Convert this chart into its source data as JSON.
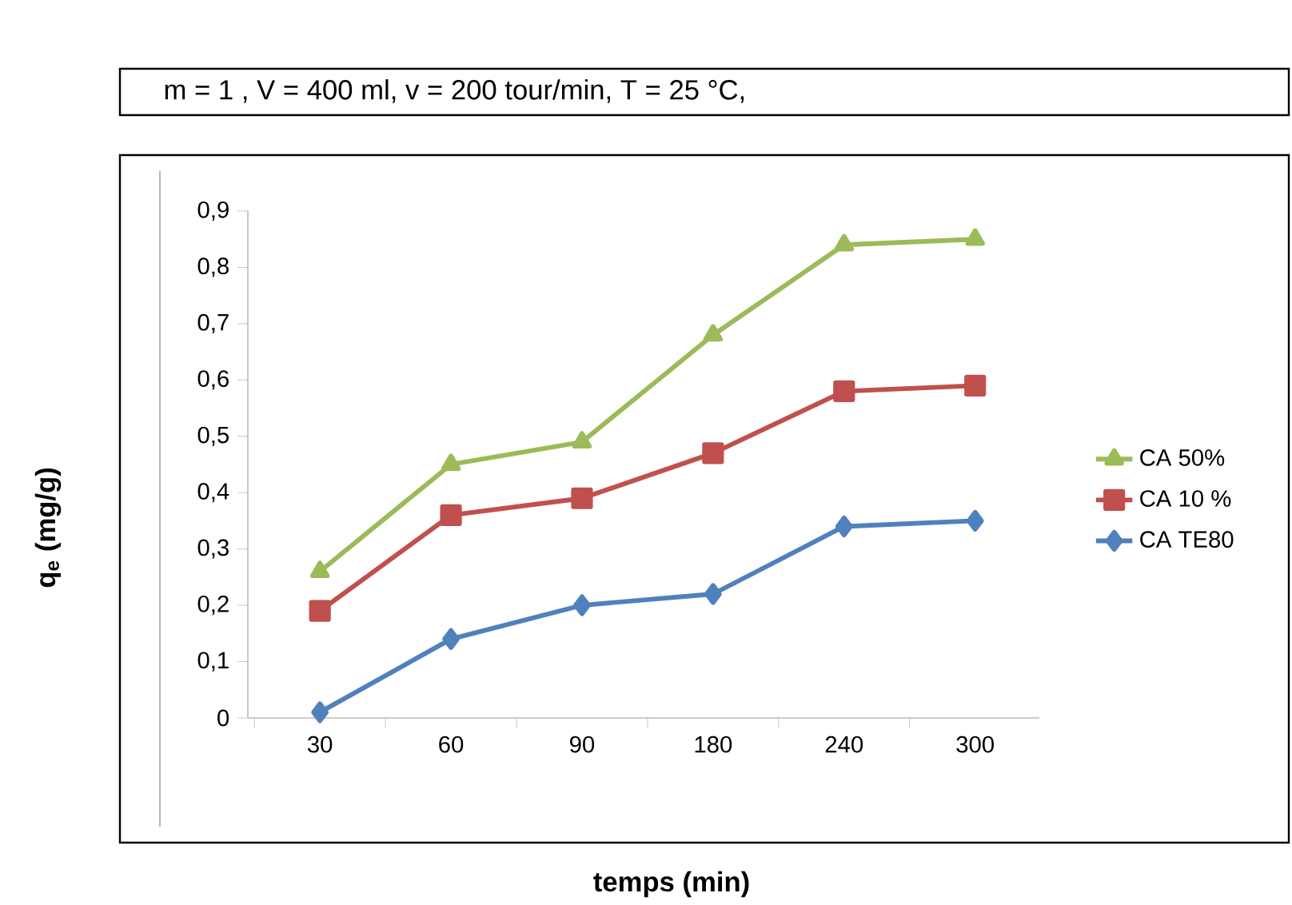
{
  "chart_data": {
    "type": "line",
    "title": "m = 1 , V = 400 ml, v = 200 tour/min, T = 25 °C,",
    "xlabel": "temps (min)",
    "ylabel": "q$_{e}$ (mg/g)",
    "categories": [
      "30",
      "60",
      "90",
      "180",
      "240",
      "300"
    ],
    "series": [
      {
        "name": "CA 50%",
        "color": "#9bbb59",
        "marker": "triangle",
        "values": [
          0.26,
          0.45,
          0.49,
          0.68,
          0.84,
          0.85
        ]
      },
      {
        "name": "CA 10 %",
        "color": "#c0504d",
        "marker": "square",
        "values": [
          0.19,
          0.36,
          0.39,
          0.47,
          0.58,
          0.59
        ]
      },
      {
        "name": "CA TE80",
        "color": "#4f81bd",
        "marker": "diamond",
        "values": [
          0.01,
          0.14,
          0.2,
          0.22,
          0.34,
          0.35
        ]
      }
    ],
    "ylim": [
      0,
      0.9
    ],
    "yticks": [
      0,
      {
        "value": 0.1,
        "label": "0,1"
      },
      {
        "value": 0.2,
        "label": "0,2"
      },
      {
        "value": 0.3,
        "label": "0,3"
      },
      {
        "value": 0.4,
        "label": "0,4"
      },
      {
        "value": 0.5,
        "label": "0,5"
      },
      {
        "value": 0.6,
        "label": "0,6"
      },
      {
        "value": 0.7,
        "label": "0,7"
      },
      {
        "value": 0.8,
        "label": "0,8"
      },
      {
        "value": 0.9,
        "label": "0,9"
      }
    ],
    "grid": false,
    "legend": "right"
  }
}
